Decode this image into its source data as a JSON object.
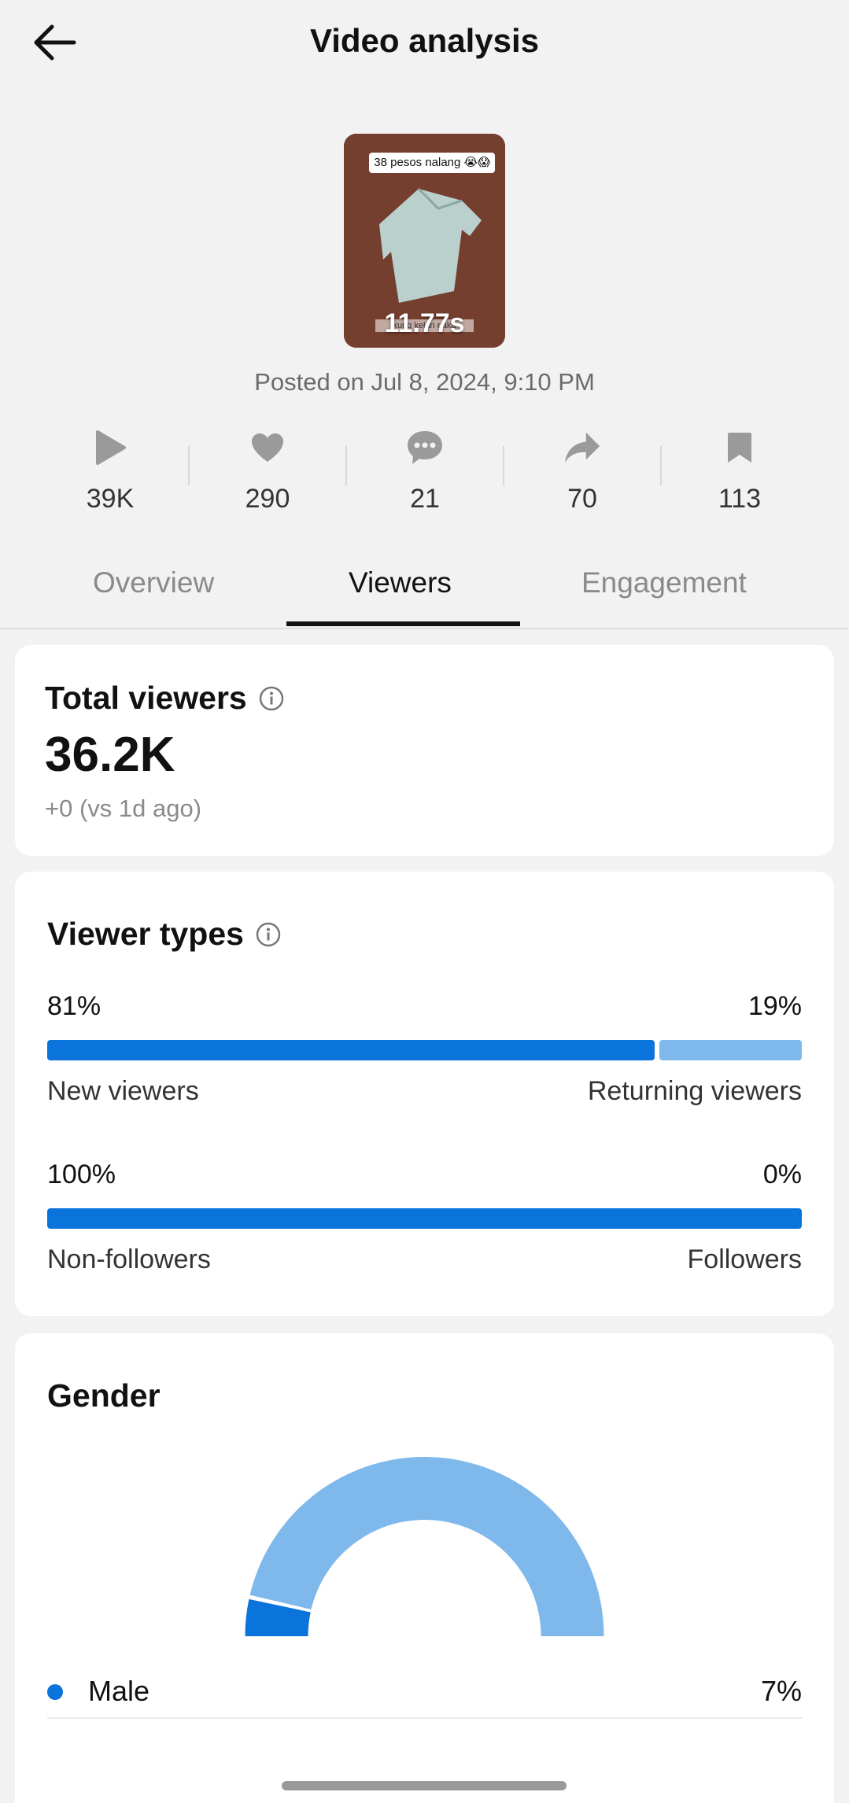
{
  "header": {
    "title": "Video analysis",
    "back_icon": "arrow-left-icon"
  },
  "video": {
    "caption": "38 pesos nalang 😭😱",
    "duration": "11.77s",
    "subtitle": "kung kelan naka",
    "posted": "Posted on Jul 8, 2024, 9:10 PM"
  },
  "stats": [
    {
      "icon": "play-icon",
      "value": "39K"
    },
    {
      "icon": "heart-icon",
      "value": "290"
    },
    {
      "icon": "comment-icon",
      "value": "21"
    },
    {
      "icon": "share-icon",
      "value": "70"
    },
    {
      "icon": "bookmark-icon",
      "value": "113"
    }
  ],
  "tabs": [
    {
      "label": "Overview",
      "active": false
    },
    {
      "label": "Viewers",
      "active": true
    },
    {
      "label": "Engagement",
      "active": false
    }
  ],
  "total_viewers": {
    "title": "Total viewers",
    "value": "36.2K",
    "delta": "+0  (vs 1d ago)"
  },
  "viewer_types": {
    "title": "Viewer types",
    "rows": [
      {
        "left_pct": "81%",
        "right_pct": "19%",
        "left_label": "New viewers",
        "right_label": "Returning viewers",
        "left_value": 81,
        "right_value": 19
      },
      {
        "left_pct": "100%",
        "right_pct": "0%",
        "left_label": "Non-followers",
        "right_label": "Followers",
        "left_value": 100,
        "right_value": 0
      }
    ]
  },
  "gender": {
    "title": "Gender",
    "male_label": "Male",
    "male_pct": "7%",
    "male_value": 7
  },
  "colors": {
    "primary": "#0a73dc",
    "light": "#7fb9ec",
    "background": "#f2f2f2",
    "card": "#ffffff"
  }
}
